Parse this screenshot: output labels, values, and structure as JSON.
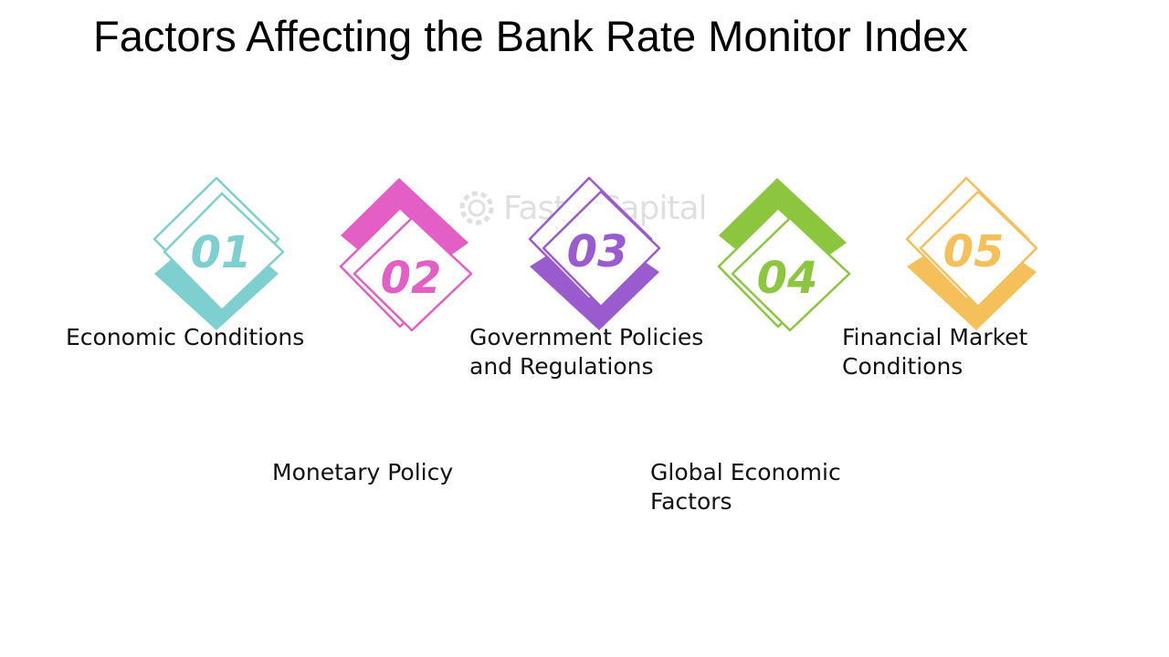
{
  "title": "Factors Affecting the Bank Rate Monitor Index",
  "watermark": "FasterCapital",
  "items": [
    {
      "number": "01",
      "color": "#7ecfcf",
      "label_lines": [
        "Economic Conditions"
      ]
    },
    {
      "number": "02",
      "color": "#e35fc5",
      "label_lines": [
        "Monetary Policy"
      ]
    },
    {
      "number": "03",
      "color": "#9a5bcf",
      "label_lines": [
        "Government Policies",
        "and Regulations"
      ]
    },
    {
      "number": "04",
      "color": "#8cc63f",
      "label_lines": [
        "Global Economic",
        "Factors"
      ]
    },
    {
      "number": "05",
      "color": "#f5bf5a",
      "label_lines": [
        "Financial Market",
        "Conditions"
      ]
    }
  ]
}
